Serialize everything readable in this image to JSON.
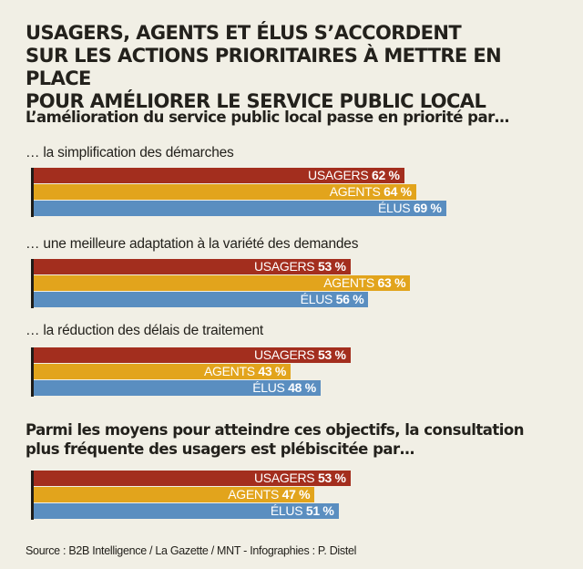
{
  "header": {
    "title_lines": [
      "USAGERS, AGENTS ET ÉLUS S’ACCORDENT",
      "SUR LES ACTIONS PRIORITAIRES À METTRE EN PLACE",
      "POUR AMÉLIORER LE SERVICE PUBLIC LOCAL"
    ]
  },
  "source": "Source : B2B Intelligence / La Gazette / MNT - Infographies : P. Distel",
  "colors": {
    "usagers": "#a32e1e",
    "agents": "#e2a41c",
    "elus": "#5a8ec0",
    "background": "#f1efe5"
  },
  "chart_data": [
    {
      "type": "bar",
      "orientation": "horizontal",
      "title": "L’amélioration du service public local passe en priorité par…",
      "unit": "%",
      "xlim": [
        0,
        100
      ],
      "series_names": [
        "USAGERS",
        "AGENTS",
        "ÉLUS"
      ],
      "groups": [
        {
          "label": "… la simplification des démarches",
          "bars": [
            {
              "name": "USAGERS",
              "value": 62,
              "text": "62 %"
            },
            {
              "name": "AGENTS",
              "value": 64,
              "text": "64 %"
            },
            {
              "name": "ÉLUS",
              "value": 69,
              "text": "69 %"
            }
          ]
        },
        {
          "label": "… une meilleure adaptation à la variété des demandes",
          "bars": [
            {
              "name": "USAGERS",
              "value": 53,
              "text": "53 %"
            },
            {
              "name": "AGENTS",
              "value": 63,
              "text": "63 %"
            },
            {
              "name": "ÉLUS",
              "value": 56,
              "text": "56 %"
            }
          ]
        },
        {
          "label": "… la réduction des délais de traitement",
          "bars": [
            {
              "name": "USAGERS",
              "value": 53,
              "text": "53 %"
            },
            {
              "name": "AGENTS",
              "value": 43,
              "text": "43 %"
            },
            {
              "name": "ÉLUS",
              "value": 48,
              "text": "48 %"
            }
          ]
        }
      ]
    },
    {
      "type": "bar",
      "orientation": "horizontal",
      "title_lines": [
        "Parmi les moyens pour atteindre ces objectifs, la consultation",
        "plus fréquente des usagers est plébiscitée par…"
      ],
      "unit": "%",
      "xlim": [
        0,
        100
      ],
      "series_names": [
        "USAGERS",
        "AGENTS",
        "ÉLUS"
      ],
      "groups": [
        {
          "bars": [
            {
              "name": "USAGERS",
              "value": 53,
              "text": "53 %"
            },
            {
              "name": "AGENTS",
              "value": 47,
              "text": "47 %"
            },
            {
              "name": "ÉLUS",
              "value": 51,
              "text": "51 %"
            }
          ]
        }
      ]
    }
  ]
}
